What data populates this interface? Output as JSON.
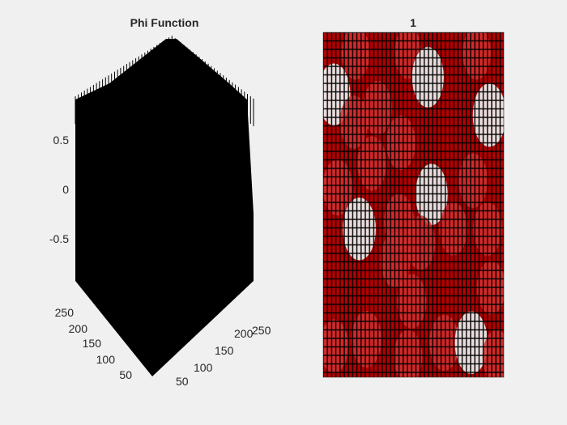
{
  "figure": {
    "background": "#f0f0f0"
  },
  "chart_data": [
    {
      "type": "surface",
      "title": "Phi Function",
      "xlabel": "",
      "ylabel": "",
      "zlabel": "",
      "color": "#000000",
      "z_ticks": [
        "0.5",
        "0",
        "-0.5"
      ],
      "x_ticks": [
        "50",
        "100",
        "150",
        "200",
        "250"
      ],
      "y_ticks": [
        "50",
        "100",
        "150",
        "200",
        "250"
      ],
      "zlim": [
        -1,
        1
      ],
      "xlim": [
        1,
        256
      ],
      "ylim": [
        1,
        256
      ],
      "grid": false
    },
    {
      "type": "heatmap",
      "title": "1",
      "xlabel": "",
      "ylabel": "",
      "colors": {
        "background": "#b30000",
        "grid": "#000000",
        "cell": "#d93030",
        "highlight": "#f0f0f0"
      },
      "grid": true,
      "blobs": [
        {
          "x": 0.18,
          "y": 0.06,
          "r": 0.6
        },
        {
          "x": 0.47,
          "y": 0.06,
          "r": 0.55
        },
        {
          "x": 0.85,
          "y": 0.06,
          "r": 0.6
        },
        {
          "x": 0.58,
          "y": 0.13,
          "r": 0.85
        },
        {
          "x": 0.06,
          "y": 0.18,
          "r": 0.9
        },
        {
          "x": 0.3,
          "y": 0.22,
          "r": 0.65
        },
        {
          "x": 0.92,
          "y": 0.24,
          "r": 0.95
        },
        {
          "x": 0.17,
          "y": 0.26,
          "r": 0.6
        },
        {
          "x": 0.43,
          "y": 0.32,
          "r": 0.65
        },
        {
          "x": 0.27,
          "y": 0.38,
          "r": 0.65
        },
        {
          "x": 0.83,
          "y": 0.43,
          "r": 0.65
        },
        {
          "x": 0.08,
          "y": 0.45,
          "r": 0.7
        },
        {
          "x": 0.6,
          "y": 0.47,
          "r": 0.88
        },
        {
          "x": 0.42,
          "y": 0.55,
          "r": 0.72
        },
        {
          "x": 0.2,
          "y": 0.57,
          "r": 0.93
        },
        {
          "x": 0.72,
          "y": 0.57,
          "r": 0.6
        },
        {
          "x": 0.54,
          "y": 0.61,
          "r": 0.65
        },
        {
          "x": 0.91,
          "y": 0.57,
          "r": 0.62
        },
        {
          "x": 0.4,
          "y": 0.66,
          "r": 0.7
        },
        {
          "x": 0.93,
          "y": 0.74,
          "r": 0.62
        },
        {
          "x": 0.49,
          "y": 0.78,
          "r": 0.65
        },
        {
          "x": 0.24,
          "y": 0.89,
          "r": 0.72
        },
        {
          "x": 0.67,
          "y": 0.9,
          "r": 0.7
        },
        {
          "x": 0.06,
          "y": 0.91,
          "r": 0.62
        },
        {
          "x": 0.82,
          "y": 0.9,
          "r": 0.92
        },
        {
          "x": 0.47,
          "y": 0.94,
          "r": 0.62
        },
        {
          "x": 0.96,
          "y": 0.94,
          "r": 0.6
        }
      ]
    }
  ]
}
